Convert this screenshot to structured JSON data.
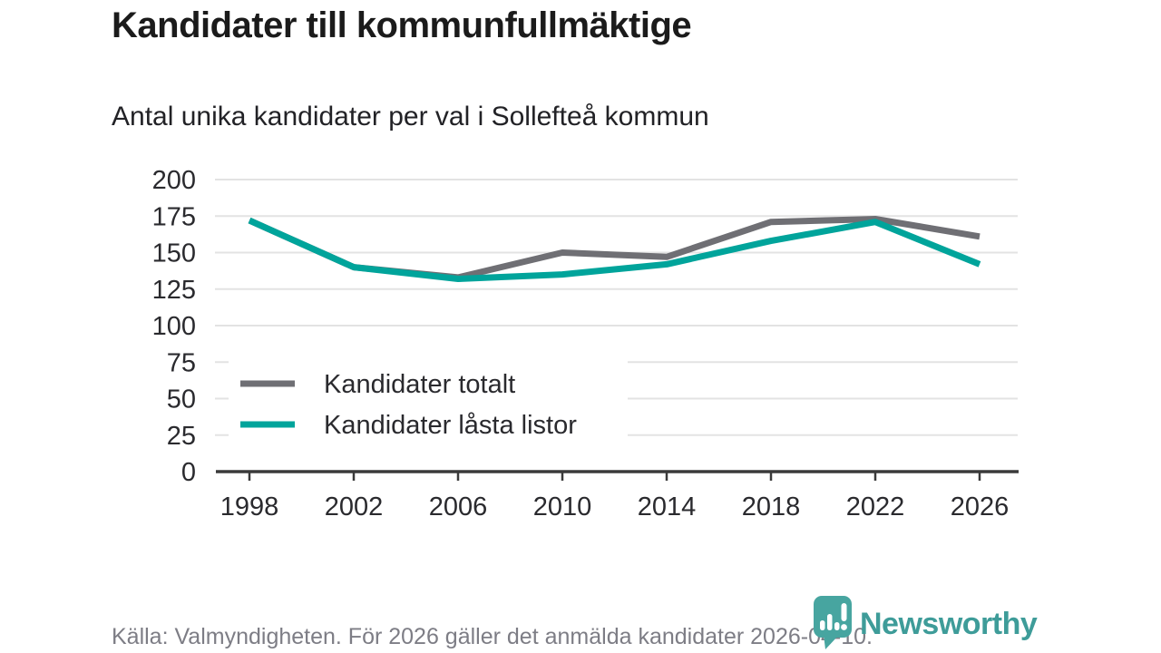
{
  "header": {
    "title": "Kandidater till kommunfullmäktige",
    "subtitle": "Antal unika kandidater per val i Sollefteå kommun"
  },
  "footer": {
    "source_text": "Källa: Valmyndigheten. För 2026 gäller det anmälda kandidater 2026-04-10.",
    "brand_name": "Newsworthy"
  },
  "colors": {
    "series_total": "#6f6f74",
    "series_locked": "#00a49b",
    "gridline": "#e3e3e3",
    "axis": "#3a3a3a",
    "tick_label": "#2a2a2e",
    "footer_text": "#7d7d85",
    "logo_teal": "#47a5a0",
    "brand_word": "#3e9c99",
    "background": "#ffffff"
  },
  "chart_data": {
    "type": "line",
    "x": [
      1998,
      2002,
      2006,
      2010,
      2014,
      2018,
      2022,
      2026
    ],
    "series": [
      {
        "name": "Kandidater totalt",
        "color": "#6f6f74",
        "values": [
          172,
          140,
          133,
          150,
          147,
          171,
          173,
          161
        ]
      },
      {
        "name": "Kandidater låsta listor",
        "color": "#00a49b",
        "values": [
          172,
          140,
          132,
          135,
          142,
          158,
          171,
          142
        ]
      }
    ],
    "title": "Kandidater till kommunfullmäktige",
    "subtitle": "Antal unika kandidater per val i Sollefteå kommun",
    "xlabel": "",
    "ylabel": "",
    "ylim": [
      0,
      200
    ],
    "yticks": [
      0,
      25,
      50,
      75,
      100,
      125,
      150,
      175,
      200
    ],
    "grid": true,
    "legend_position": "inside-bottom-left"
  }
}
